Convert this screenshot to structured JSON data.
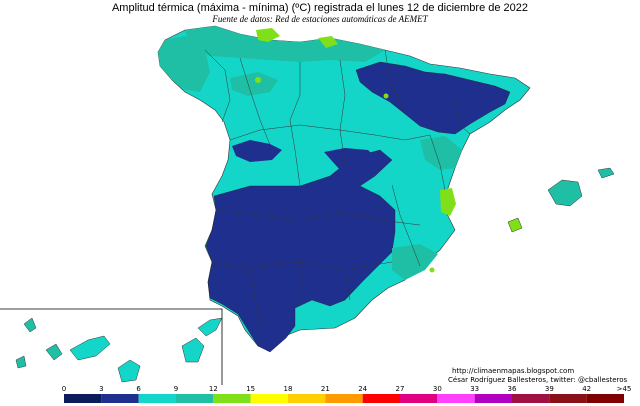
{
  "header": {
    "title": "Amplitud térmica (máxima - mínima) (ºC) registrada el lunes 12 de diciembre de 2022",
    "subtitle": "Fuente de datos: Red de estaciones automáticas de AEMET"
  },
  "credits": {
    "url": "http://climaenmapas.blogspot.com",
    "author": "César Rodríguez Ballesteros, twitter: @cballesteros"
  },
  "legend": {
    "ticks": [
      "0",
      "3",
      "6",
      "9",
      "12",
      "15",
      "18",
      "21",
      "24",
      "27",
      "30",
      "33",
      "36",
      "39",
      "42",
      ">45"
    ],
    "colors": [
      "#0b1b5c",
      "#1f2f8e",
      "#13d6c8",
      "#1fbfa6",
      "#7fe01a",
      "#ffff00",
      "#ffd000",
      "#ff9a00",
      "#ff0000",
      "#e00080",
      "#ff40ff",
      "#b000c0",
      "#a01040",
      "#8a1018",
      "#800000"
    ]
  }
}
